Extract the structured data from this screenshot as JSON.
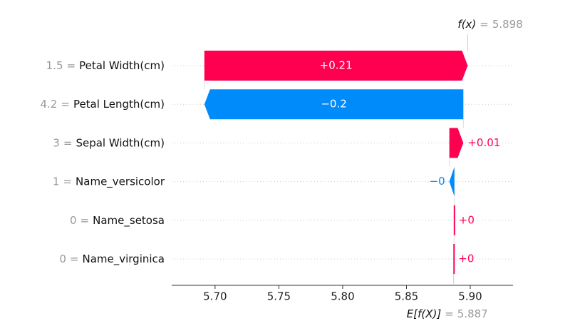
{
  "chart_data": {
    "type": "waterfall",
    "categories": [
      "Petal Width(cm)",
      "Petal Length(cm)",
      "Sepal Width(cm)",
      "Name_versicolor",
      "Name_setosa",
      "Name_virginica"
    ],
    "feature_values": [
      "1.5",
      "4.2",
      "3",
      "1",
      "0",
      "0"
    ],
    "separator": "=",
    "values": [
      0.2064,
      -0.203,
      0.011,
      -0.004,
      0.0003,
      0.0003
    ],
    "value_labels": [
      "+0.21",
      "−0.2",
      "+0.01",
      "−0",
      "+0",
      "+0"
    ],
    "base_label": "E[f(X)]",
    "base_value": 5.887,
    "output_label": "f(x)",
    "output_value": 5.898,
    "positive_color": "#ff0051",
    "negative_color": "#008bfb",
    "xlim": [
      5.666,
      5.9335
    ],
    "xticks": [
      {
        "value": 5.7,
        "label": "5.70"
      },
      {
        "value": 5.75,
        "label": "5.75"
      },
      {
        "value": 5.8,
        "label": "5.80"
      },
      {
        "value": 5.85,
        "label": "5.85"
      },
      {
        "value": 5.9,
        "label": "5.90"
      }
    ]
  }
}
